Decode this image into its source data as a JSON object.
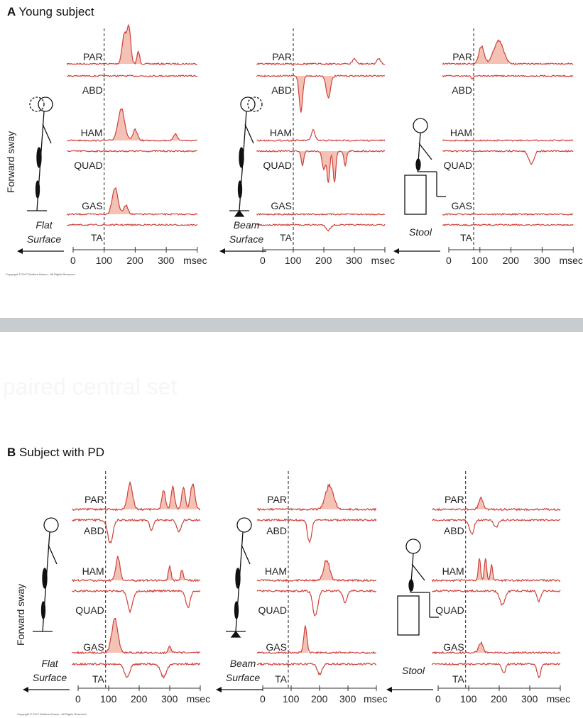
{
  "colors": {
    "trace": "#d0403a",
    "fill": "#f3c2b4",
    "band": "#c6ccd0",
    "axis": "#333333"
  },
  "faint_text": "paired central set",
  "copyright": "Copyright © 2017 Wolters Kluwer - All Rights Reserved",
  "y_axis_label": "Forward sway",
  "axis_ticks": [
    "0",
    "100",
    "200",
    "300"
  ],
  "axis_unit": "msec",
  "panel_a": {
    "letter": "A",
    "title": "Young subject",
    "conditions": [
      {
        "caption": [
          "Flat",
          "Surface"
        ],
        "onset_ms": 100,
        "muscles": [
          {
            "name": "PAR",
            "dir": 1,
            "fill": true,
            "bursts": [
              [
                165,
                0.85,
                10
              ],
              [
                180,
                1.0,
                8
              ],
              [
                210,
                0.35,
                6
              ]
            ]
          },
          {
            "name": "ABD",
            "dir": -1,
            "fill": false,
            "bursts": []
          },
          {
            "name": "HAM",
            "dir": 1,
            "fill": true,
            "bursts": [
              [
                155,
                0.9,
                15
              ],
              [
                200,
                0.3,
                10
              ],
              [
                330,
                0.2,
                8
              ]
            ]
          },
          {
            "name": "QUAD",
            "dir": -1,
            "fill": false,
            "bursts": []
          },
          {
            "name": "GAS",
            "dir": 1,
            "fill": true,
            "bursts": [
              [
                135,
                0.75,
                13
              ],
              [
                170,
                0.25,
                10
              ]
            ]
          },
          {
            "name": "TA",
            "dir": -1,
            "fill": false,
            "bursts": []
          }
        ]
      },
      {
        "caption": [
          "Beam",
          "Surface"
        ],
        "onset_ms": 100,
        "muscles": [
          {
            "name": "PAR",
            "dir": 1,
            "fill": false,
            "bursts": [
              [
                300,
                0.15,
                8
              ],
              [
                380,
                0.15,
                8
              ]
            ]
          },
          {
            "name": "ABD",
            "dir": -1,
            "fill": true,
            "bursts": [
              [
                125,
                1.0,
                8
              ],
              [
                215,
                0.6,
                10
              ]
            ]
          },
          {
            "name": "HAM",
            "dir": 1,
            "fill": false,
            "bursts": [
              [
                165,
                0.3,
                8
              ]
            ]
          },
          {
            "name": "QUAD",
            "dir": -1,
            "fill": true,
            "bursts": [
              [
                130,
                0.4,
                6
              ],
              [
                200,
                0.5,
                8
              ],
              [
                215,
                0.9,
                6
              ],
              [
                235,
                0.9,
                6
              ],
              [
                270,
                0.4,
                6
              ]
            ]
          },
          {
            "name": "GAS",
            "dir": 1,
            "fill": false,
            "bursts": []
          },
          {
            "name": "TA",
            "dir": -1,
            "fill": false,
            "bursts": [
              [
                215,
                0.15,
                10
              ]
            ]
          }
        ]
      },
      {
        "caption": [
          "Stool"
        ],
        "onset_ms": 80,
        "muscles": [
          {
            "name": "PAR",
            "dir": 1,
            "fill": true,
            "bursts": [
              [
                105,
                0.5,
                12
              ],
              [
                160,
                0.65,
                22
              ]
            ]
          },
          {
            "name": "ABD",
            "dir": -1,
            "fill": false,
            "bursts": [
              [
                75,
                0.1,
                5
              ]
            ]
          },
          {
            "name": "HAM",
            "dir": 1,
            "fill": false,
            "bursts": []
          },
          {
            "name": "QUAD",
            "dir": -1,
            "fill": false,
            "bursts": [
              [
                265,
                0.35,
                12
              ]
            ]
          },
          {
            "name": "GAS",
            "dir": 1,
            "fill": false,
            "bursts": []
          },
          {
            "name": "TA",
            "dir": -1,
            "fill": false,
            "bursts": []
          }
        ]
      }
    ]
  },
  "panel_b": {
    "letter": "B",
    "title": "Subject with PD",
    "conditions": [
      {
        "caption": [
          "Flat",
          "Surface"
        ],
        "onset_ms": 90,
        "muscles": [
          {
            "name": "PAR",
            "dir": 1,
            "fill": true,
            "bursts": [
              [
                170,
                0.9,
                12
              ],
              [
                280,
                0.7,
                8
              ],
              [
                310,
                0.8,
                8
              ],
              [
                345,
                0.8,
                8
              ],
              [
                375,
                0.9,
                10
              ]
            ]
          },
          {
            "name": "ABD",
            "dir": -1,
            "fill": false,
            "bursts": [
              [
                105,
                0.8,
                12
              ],
              [
                240,
                0.4,
                8
              ],
              [
                330,
                0.4,
                10
              ]
            ]
          },
          {
            "name": "HAM",
            "dir": 1,
            "fill": true,
            "bursts": [
              [
                130,
                0.8,
                10
              ],
              [
                300,
                0.5,
                6
              ],
              [
                340,
                0.35,
                6
              ]
            ]
          },
          {
            "name": "QUAD",
            "dir": -1,
            "fill": false,
            "bursts": [
              [
                170,
                0.7,
                12
              ],
              [
                360,
                0.6,
                10
              ]
            ]
          },
          {
            "name": "GAS",
            "dir": 1,
            "fill": true,
            "bursts": [
              [
                120,
                1.2,
                14
              ],
              [
                300,
                0.25,
                6
              ]
            ]
          },
          {
            "name": "TA",
            "dir": -1,
            "fill": false,
            "bursts": [
              [
                160,
                0.45,
                12
              ],
              [
                280,
                0.45,
                14
              ]
            ]
          }
        ]
      },
      {
        "caption": [
          "Beam",
          "Surface"
        ],
        "onset_ms": 90,
        "muscles": [
          {
            "name": "PAR",
            "dir": 1,
            "fill": true,
            "bursts": [
              [
                235,
                0.85,
                20
              ]
            ]
          },
          {
            "name": "ABD",
            "dir": -1,
            "fill": false,
            "bursts": [
              [
                165,
                0.8,
                10
              ]
            ]
          },
          {
            "name": "HAM",
            "dir": 1,
            "fill": true,
            "bursts": [
              [
                225,
                0.75,
                14
              ]
            ]
          },
          {
            "name": "QUAD",
            "dir": -1,
            "fill": false,
            "bursts": [
              [
                185,
                0.9,
                12
              ],
              [
                290,
                0.4,
                10
              ]
            ]
          },
          {
            "name": "GAS",
            "dir": 1,
            "fill": true,
            "bursts": [
              [
                150,
                0.9,
                8
              ]
            ]
          },
          {
            "name": "TA",
            "dir": -1,
            "fill": false,
            "bursts": [
              [
                200,
                0.35,
                12
              ]
            ]
          }
        ]
      },
      {
        "caption": [
          "Stool"
        ],
        "onset_ms": 90,
        "muscles": [
          {
            "name": "PAR",
            "dir": 1,
            "fill": true,
            "bursts": [
              [
                140,
                0.4,
                10
              ]
            ]
          },
          {
            "name": "ABD",
            "dir": -1,
            "fill": false,
            "bursts": [
              [
                110,
                0.5,
                10
              ],
              [
                190,
                0.25,
                10
              ]
            ]
          },
          {
            "name": "HAM",
            "dir": 1,
            "fill": true,
            "bursts": [
              [
                135,
                0.8,
                5
              ],
              [
                155,
                0.8,
                5
              ],
              [
                175,
                0.6,
                5
              ]
            ]
          },
          {
            "name": "QUAD",
            "dir": -1,
            "fill": false,
            "bursts": [
              [
                210,
                0.5,
                12
              ],
              [
                330,
                0.35,
                8
              ]
            ]
          },
          {
            "name": "GAS",
            "dir": 1,
            "fill": true,
            "bursts": [
              [
                140,
                0.35,
                10
              ]
            ]
          },
          {
            "name": "TA",
            "dir": -1,
            "fill": false,
            "bursts": [
              [
                215,
                0.3,
                8
              ],
              [
                330,
                0.5,
                8
              ]
            ]
          }
        ]
      }
    ]
  }
}
